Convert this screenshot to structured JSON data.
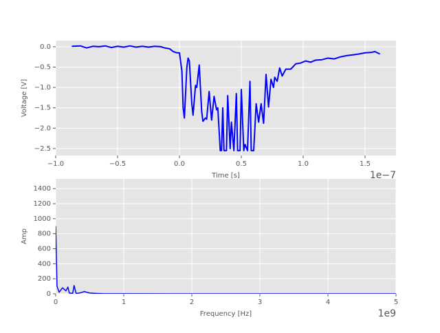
{
  "chart_data": [
    {
      "type": "line",
      "x_label": "Time [s]",
      "y_label": "Voltage [V]",
      "x_offset_label": "1e−7",
      "xlim": [
        -1.0,
        1.75
      ],
      "ylim": [
        -2.67,
        0.15
      ],
      "xticks": [
        {
          "value": -1.0,
          "label": "−1.0"
        },
        {
          "value": -0.5,
          "label": "−0.5"
        },
        {
          "value": 0.0,
          "label": "0.0"
        },
        {
          "value": 0.5,
          "label": "0.5"
        },
        {
          "value": 1.0,
          "label": "1.0"
        },
        {
          "value": 1.5,
          "label": "1.5"
        }
      ],
      "yticks": [
        {
          "value": 0.0,
          "label": "0.0"
        },
        {
          "value": -0.5,
          "label": "−0.5"
        },
        {
          "value": -1.0,
          "label": "−1.0"
        },
        {
          "value": -1.5,
          "label": "−1.5"
        },
        {
          "value": -2.0,
          "label": "−2.0"
        },
        {
          "value": -2.5,
          "label": "−2.5"
        }
      ],
      "grid": true,
      "x": [
        -0.87,
        -0.8,
        -0.75,
        -0.7,
        -0.65,
        -0.6,
        -0.55,
        -0.5,
        -0.45,
        -0.4,
        -0.35,
        -0.3,
        -0.25,
        -0.2,
        -0.15,
        -0.12,
        -0.08,
        -0.05,
        -0.02,
        0.0,
        0.02,
        0.03,
        0.04,
        0.06,
        0.07,
        0.08,
        0.1,
        0.11,
        0.13,
        0.14,
        0.16,
        0.18,
        0.19,
        0.21,
        0.22,
        0.24,
        0.26,
        0.28,
        0.3,
        0.31,
        0.33,
        0.34,
        0.35,
        0.36,
        0.38,
        0.39,
        0.41,
        0.42,
        0.44,
        0.46,
        0.47,
        0.49,
        0.5,
        0.52,
        0.53,
        0.55,
        0.57,
        0.58,
        0.6,
        0.62,
        0.64,
        0.66,
        0.68,
        0.7,
        0.72,
        0.74,
        0.76,
        0.77,
        0.79,
        0.81,
        0.83,
        0.86,
        0.9,
        0.94,
        0.98,
        1.02,
        1.06,
        1.1,
        1.15,
        1.2,
        1.25,
        1.3,
        1.35,
        1.4,
        1.45,
        1.5,
        1.55,
        1.58,
        1.62
      ],
      "series": [
        {
          "color": "#0000ff",
          "values": [
            0.01,
            0.02,
            -0.03,
            0.01,
            0.0,
            0.02,
            -0.02,
            0.01,
            -0.01,
            0.02,
            -0.01,
            0.01,
            -0.01,
            0.01,
            0.0,
            -0.03,
            -0.05,
            -0.12,
            -0.15,
            -0.15,
            -0.6,
            -1.5,
            -1.75,
            -0.5,
            -0.28,
            -0.35,
            -1.4,
            -1.68,
            -0.95,
            -1.0,
            -0.45,
            -1.6,
            -1.83,
            -1.75,
            -1.78,
            -1.1,
            -1.8,
            -1.22,
            -1.55,
            -1.5,
            -2.55,
            -2.55,
            -1.5,
            -2.55,
            -2.55,
            -1.2,
            -2.5,
            -1.85,
            -2.55,
            -1.15,
            -2.55,
            -2.55,
            -1.05,
            -2.55,
            -2.4,
            -2.55,
            -0.85,
            -2.55,
            -2.55,
            -1.4,
            -1.85,
            -1.4,
            -1.88,
            -0.68,
            -1.48,
            -0.8,
            -1.0,
            -0.75,
            -0.85,
            -0.52,
            -0.72,
            -0.55,
            -0.55,
            -0.42,
            -0.4,
            -0.35,
            -0.38,
            -0.33,
            -0.32,
            -0.28,
            -0.3,
            -0.25,
            -0.22,
            -0.2,
            -0.18,
            -0.15,
            -0.14,
            -0.12,
            -0.18
          ]
        }
      ]
    },
    {
      "type": "line",
      "x_label": "Frequency [Hz]",
      "y_label": "Amp",
      "x_offset_label": "1e9",
      "xlim": [
        0,
        5
      ],
      "ylim": [
        0,
        1530
      ],
      "xticks": [
        0,
        1,
        2,
        3,
        4,
        5
      ],
      "yticks": [
        0,
        200,
        400,
        600,
        800,
        1000,
        1200,
        1400
      ],
      "grid": true,
      "x": [
        0,
        0.02,
        0.05,
        0.1,
        0.15,
        0.18,
        0.2,
        0.25,
        0.27,
        0.3,
        0.35,
        0.42,
        0.5,
        0.6,
        0.7,
        1.0,
        2.0,
        3.0,
        4.0,
        5.0
      ],
      "series": [
        {
          "color": "#0000ff",
          "values": [
            900,
            100,
            20,
            80,
            40,
            90,
            10,
            5,
            110,
            5,
            10,
            30,
            10,
            5,
            2,
            1,
            0,
            0,
            0,
            0
          ]
        }
      ]
    }
  ]
}
